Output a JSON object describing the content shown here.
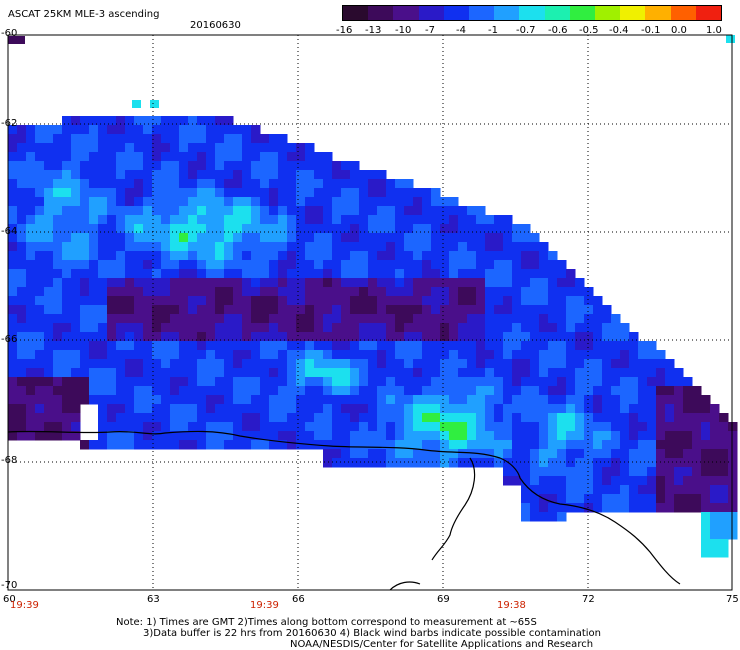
{
  "title": "ASCAT 25KM MLE-3 ascending",
  "date": "20160630",
  "colorbar": {
    "labels": [
      "-16",
      "-13",
      "-10",
      "-7",
      "-4",
      "-1",
      "-0.7",
      "-0.6",
      "-0.5",
      "-0.4",
      "-0.1",
      "0.0",
      "1.0"
    ],
    "colors": [
      "#2a0a2e",
      "#3d0a5a",
      "#4a0f8a",
      "#2a1ac8",
      "#1030f0",
      "#1c66ff",
      "#20a0ff",
      "#1ce0ee",
      "#1cf0b0",
      "#30ee40",
      "#a0f000",
      "#f0f000",
      "#ffb000",
      "#ff6000",
      "#f02010"
    ]
  },
  "lat_labels": [
    "-60",
    "-62",
    "-64",
    "-66",
    "-68",
    "-70"
  ],
  "lon_labels": [
    "60",
    "63",
    "66",
    "69",
    "72",
    "75"
  ],
  "time_labels": [
    "19:39",
    "19:39",
    "19:38"
  ],
  "notes": [
    "Note: 1) Times are GMT 2)Times along bottom correspond to measurement at ~65S",
    "3)Data buffer is 22 hrs from 20160630 4) Black wind barbs indicate possible contamination",
    "NOAA/NESDIS/Center for Satellite Applications and Research"
  ]
}
